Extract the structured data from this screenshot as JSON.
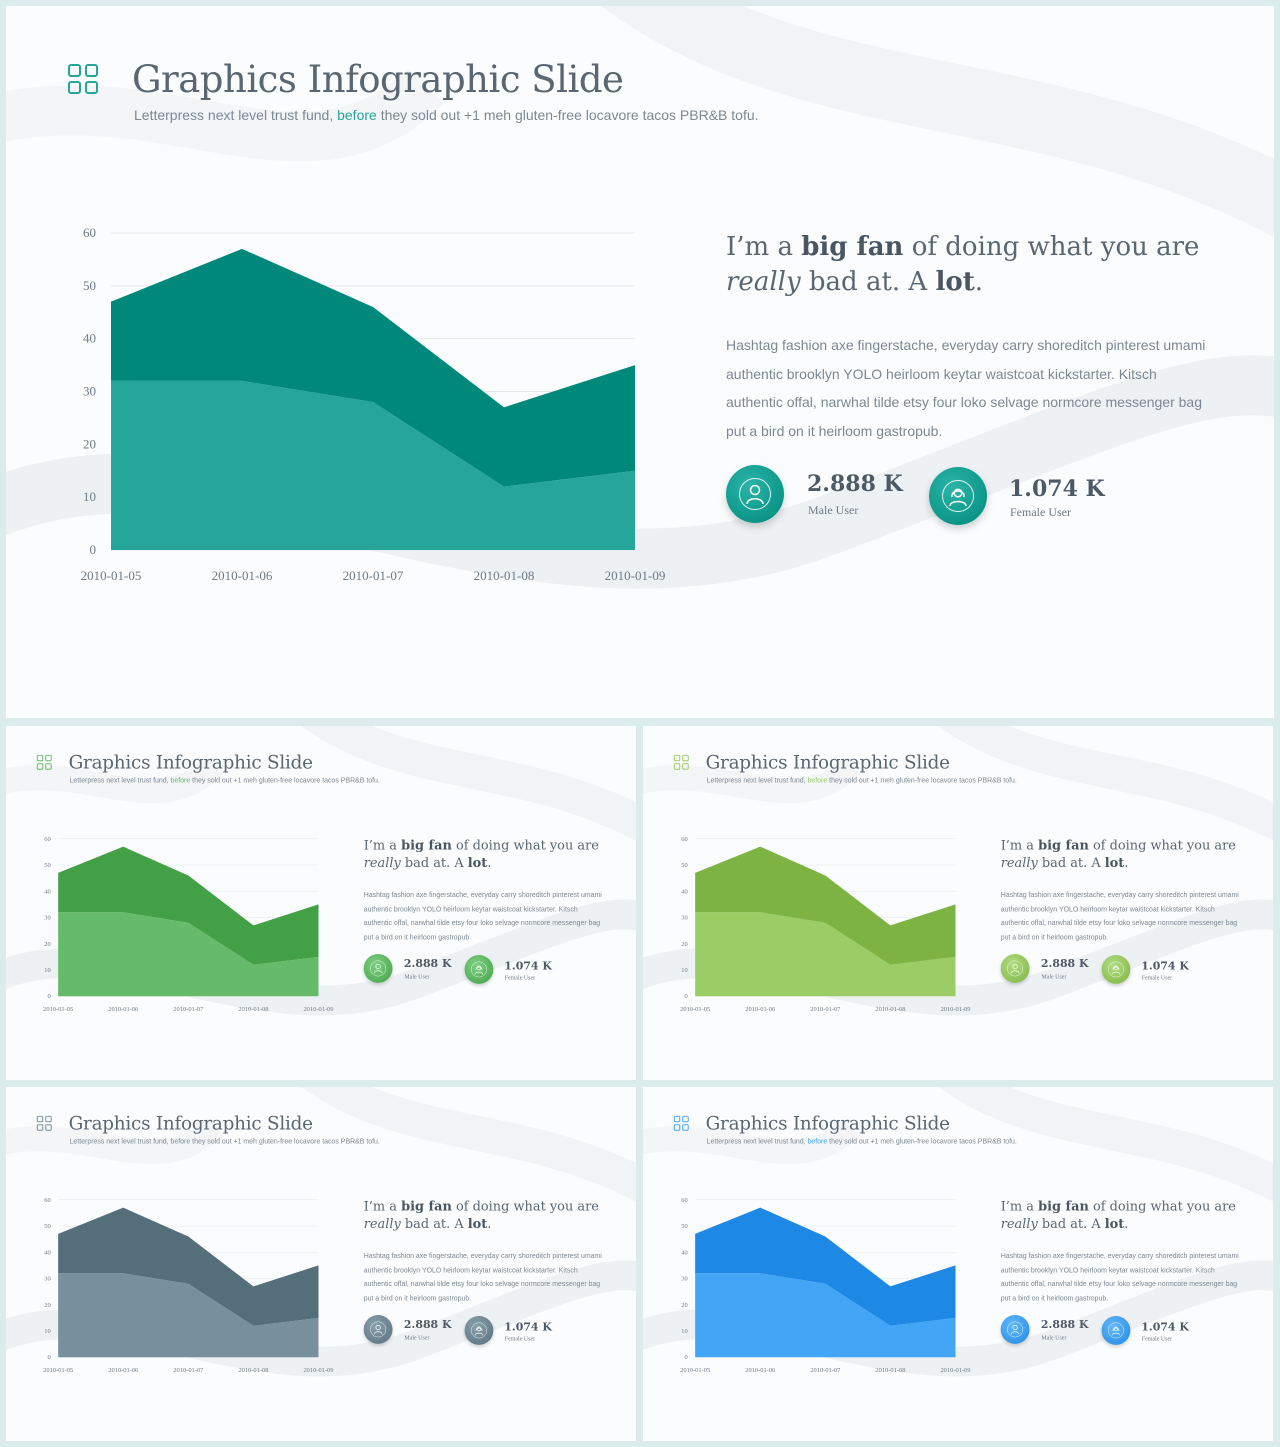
{
  "slide": {
    "title": "Graphics Infographic Slide",
    "subtitle_pre": "Letterpress next level trust fund, ",
    "subtitle_highlight": "before",
    "subtitle_post": " they sold out +1 meh gluten-free locavore tacos PBR&B tofu.",
    "heading": {
      "p1": "I’m a ",
      "b1": "big fan",
      "p2": " of doing what you are",
      "i1": "really",
      "p3": " bad at. A ",
      "b2": "lot",
      "p4": "."
    },
    "body": "Hashtag fashion axe fingerstache, everyday carry shoreditch pinterest umami authentic brooklyn YOLO heirloom keytar waistcoat kickstarter. Kitsch authentic offal, narwhal tilde etsy four loko selvage normcore messenger bag put a bird on it heirloom gastropub.",
    "stats": [
      {
        "value": "2.888 K",
        "label": "Male User",
        "icon": "male-user-icon"
      },
      {
        "value": "1.074 K",
        "label": "Female User",
        "icon": "female-user-icon"
      }
    ]
  },
  "chart_data": {
    "type": "area",
    "stacked": true,
    "x": [
      "2010-01-05",
      "2010-01-06",
      "2010-01-07",
      "2010-01-08",
      "2010-01-09"
    ],
    "series": [
      {
        "values": [
          32,
          32,
          28,
          12,
          15
        ]
      },
      {
        "values": [
          15,
          25,
          18,
          15,
          20
        ]
      }
    ],
    "ylim": [
      0,
      60
    ],
    "yticks": [
      0,
      10,
      20,
      30,
      40,
      50,
      60
    ],
    "grid": true,
    "legend": "none"
  },
  "themes": [
    {
      "name": "teal",
      "accent": "#26a69a",
      "upper": "#00897b",
      "lower": "#26a69a",
      "c1": "#00897b",
      "c2": "#2ab5a8"
    },
    {
      "name": "green",
      "accent": "#66bb6a",
      "upper": "#43a047",
      "lower": "#66bb6a",
      "c1": "#43a047",
      "c2": "#7ccf80"
    },
    {
      "name": "lime",
      "accent": "#9ccc65",
      "upper": "#7cb342",
      "lower": "#9ccc65",
      "c1": "#7cb342",
      "c2": "#b2dc80"
    },
    {
      "name": "slate",
      "accent": "#78909c",
      "upper": "#546e7a",
      "lower": "#78909c",
      "c1": "#546e7a",
      "c2": "#8aa1ad"
    },
    {
      "name": "blue",
      "accent": "#42a5f5",
      "upper": "#1e88e5",
      "lower": "#42a5f5",
      "c1": "#1e88e5",
      "c2": "#64b8f8"
    }
  ]
}
